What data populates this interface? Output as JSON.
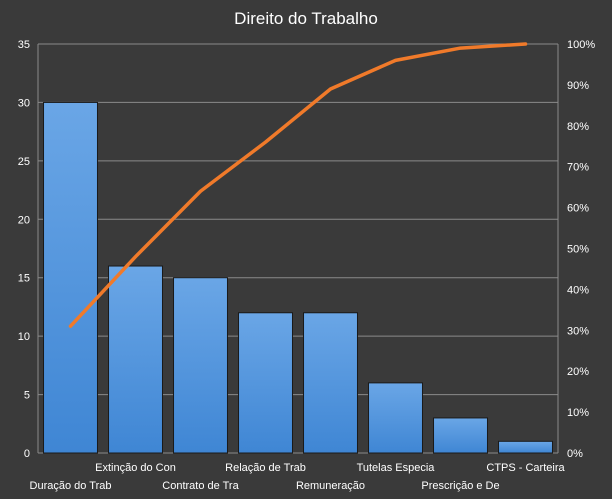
{
  "chart_data": {
    "type": "bar",
    "title": "Direito do Trabalho",
    "categories": [
      "Duração do Trab",
      "Extinção do Con",
      "Contrato de Tra",
      "Relação de Trab",
      "Remuneração",
      "Tutelas Especia",
      "Prescrição e De",
      "CTPS - Carteira"
    ],
    "series": [
      {
        "type": "bar",
        "values": [
          30,
          16,
          15,
          12,
          12,
          6,
          3,
          1
        ]
      },
      {
        "type": "line",
        "axis": "right",
        "values": [
          31,
          48,
          64,
          76,
          89,
          96,
          99,
          100
        ]
      }
    ],
    "ylim": [
      0,
      35
    ],
    "yticks": [
      "0",
      "5",
      "10",
      "15",
      "20",
      "25",
      "30",
      "35"
    ],
    "y2lim": [
      0,
      100
    ],
    "y2ticks": [
      "0%",
      "10%",
      "20%",
      "30%",
      "40%",
      "50%",
      "60%",
      "70%",
      "80%",
      "90%",
      "100%"
    ],
    "grid": true,
    "legend": "none",
    "colors": {
      "background": "#3a3a3a",
      "bar": "#4a90d9",
      "bar_edge": "#1a1a1a",
      "line": "#f07a2a",
      "grid": "#8a8a8a",
      "text": "#ffffff"
    }
  }
}
